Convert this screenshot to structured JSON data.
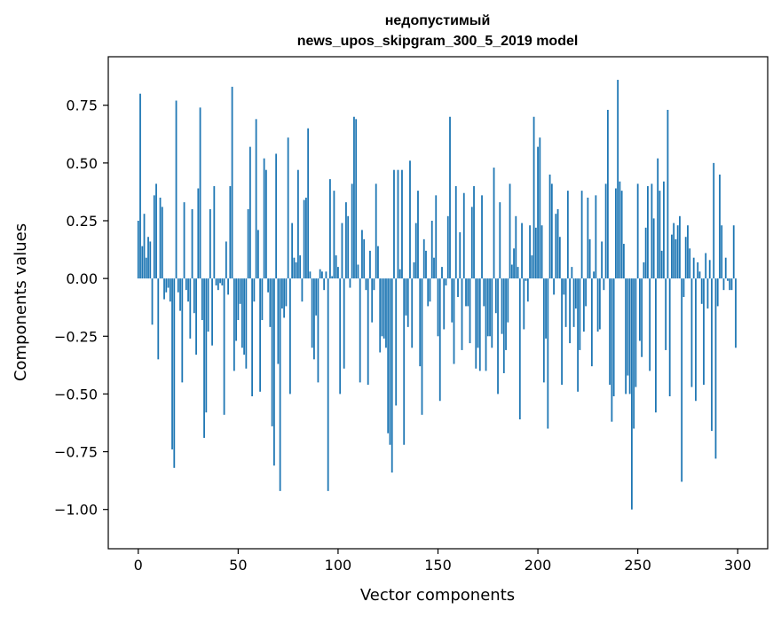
{
  "chart_data": {
    "type": "bar",
    "title": "недопустимый",
    "subtitle": "news_upos_skipgram_300_5_2019 model",
    "xlabel": "Vector components",
    "ylabel": "Components values",
    "xlim": [
      -15,
      315
    ],
    "ylim": [
      -1.17,
      0.96
    ],
    "x_ticks": [
      0,
      50,
      100,
      150,
      200,
      250,
      300
    ],
    "x_tick_labels": [
      "0",
      "50",
      "100",
      "150",
      "200",
      "250",
      "300"
    ],
    "y_ticks": [
      0.75,
      0.5,
      0.25,
      0.0,
      -0.25,
      -0.5,
      -0.75,
      -1.0
    ],
    "y_tick_labels": [
      "0.75",
      "0.50",
      "0.25",
      "0.00",
      "−0.25",
      "−0.50",
      "−0.75",
      "−1.00"
    ],
    "bar_color": "#1f77b4",
    "grid": false,
    "values": [
      0.25,
      0.8,
      0.14,
      0.28,
      0.09,
      0.18,
      0.16,
      -0.2,
      0.36,
      0.41,
      -0.35,
      0.35,
      0.31,
      -0.09,
      -0.06,
      -0.04,
      -0.1,
      -0.74,
      -0.82,
      0.77,
      -0.06,
      -0.14,
      -0.45,
      0.33,
      -0.05,
      -0.1,
      -0.26,
      0.3,
      -0.15,
      -0.33,
      0.39,
      0.74,
      -0.18,
      -0.69,
      -0.58,
      -0.23,
      0.3,
      -0.29,
      0.4,
      -0.03,
      -0.05,
      -0.02,
      -0.03,
      -0.59,
      0.16,
      -0.07,
      0.4,
      0.83,
      -0.4,
      -0.27,
      -0.18,
      -0.11,
      -0.3,
      -0.33,
      -0.39,
      0.3,
      0.57,
      -0.51,
      -0.1,
      0.69,
      0.21,
      -0.49,
      -0.18,
      0.52,
      0.47,
      -0.06,
      -0.21,
      -0.64,
      -0.81,
      0.54,
      -0.37,
      -0.92,
      -0.13,
      -0.17,
      -0.12,
      0.61,
      -0.5,
      0.24,
      0.09,
      0.07,
      0.47,
      0.1,
      -0.1,
      0.34,
      0.35,
      0.65,
      0.03,
      -0.3,
      -0.35,
      -0.16,
      -0.45,
      0.04,
      0.03,
      -0.05,
      0.03,
      -0.92,
      0.43,
      0.01,
      0.38,
      0.1,
      0.05,
      -0.5,
      0.24,
      -0.39,
      0.33,
      0.27,
      -0.04,
      0.41,
      0.7,
      0.69,
      0.06,
      -0.45,
      0.21,
      0.17,
      -0.05,
      -0.46,
      0.12,
      -0.19,
      -0.05,
      0.41,
      0.14,
      -0.32,
      -0.25,
      -0.26,
      -0.3,
      -0.67,
      -0.72,
      -0.84,
      0.47,
      -0.55,
      0.47,
      0.04,
      0.47,
      -0.72,
      -0.16,
      -0.21,
      0.51,
      -0.3,
      0.07,
      0.24,
      0.38,
      -0.38,
      -0.59,
      0.17,
      0.12,
      -0.12,
      -0.1,
      0.25,
      0.09,
      0.36,
      -0.25,
      -0.53,
      0.05,
      -0.22,
      -0.03,
      0.27,
      0.7,
      -0.19,
      -0.37,
      0.4,
      -0.08,
      0.2,
      -0.31,
      0.37,
      -0.12,
      -0.12,
      -0.28,
      0.31,
      0.4,
      -0.39,
      -0.3,
      -0.4,
      0.36,
      -0.12,
      -0.4,
      -0.25,
      -0.25,
      -0.3,
      0.48,
      -0.15,
      -0.5,
      0.33,
      -0.24,
      -0.41,
      -0.31,
      -0.19,
      0.41,
      0.06,
      0.13,
      0.27,
      0.05,
      -0.61,
      0.24,
      -0.22,
      -0.01,
      -0.1,
      0.23,
      0.1,
      0.7,
      0.22,
      0.57,
      0.61,
      0.23,
      -0.45,
      -0.26,
      -0.65,
      0.45,
      0.41,
      -0.07,
      0.28,
      0.3,
      0.18,
      -0.46,
      -0.07,
      -0.21,
      0.38,
      -0.28,
      0.05,
      -0.21,
      -0.13,
      -0.49,
      -0.31,
      0.38,
      -0.23,
      -0.12,
      0.35,
      0.17,
      -0.38,
      0.03,
      0.36,
      -0.23,
      -0.22,
      0.16,
      -0.05,
      0.41,
      0.73,
      -0.46,
      -0.62,
      -0.51,
      0.39,
      0.86,
      0.42,
      0.38,
      0.15,
      -0.5,
      -0.42,
      -0.5,
      -1.0,
      -0.65,
      -0.47,
      0.41,
      -0.27,
      -0.34,
      0.07,
      0.22,
      0.4,
      -0.4,
      0.41,
      0.26,
      -0.58,
      0.52,
      0.38,
      0.12,
      0.42,
      -0.31,
      0.73,
      -0.51,
      0.19,
      0.24,
      0.17,
      0.23,
      0.27,
      -0.88,
      -0.08,
      0.18,
      0.23,
      0.13,
      -0.47,
      0.09,
      -0.53,
      0.07,
      0.03,
      -0.11,
      -0.46,
      0.11,
      -0.13,
      0.08,
      -0.66,
      0.5,
      -0.78,
      -0.12,
      0.45,
      0.23,
      -0.05,
      0.09,
      -0.01,
      -0.05,
      -0.05,
      0.23,
      -0.3
    ]
  }
}
